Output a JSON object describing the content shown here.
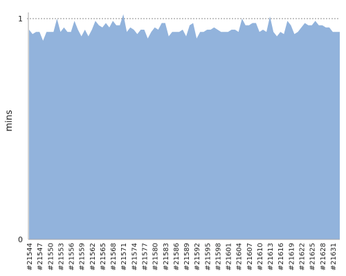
{
  "chart_data": {
    "type": "area",
    "y_label": "mins",
    "categories": [
      "#21544",
      null,
      null,
      "#21547",
      null,
      null,
      "#21550",
      null,
      null,
      "#21553",
      null,
      null,
      "#21556",
      null,
      null,
      "#21559",
      null,
      null,
      "#21562",
      null,
      null,
      "#21565",
      null,
      null,
      "#21568",
      null,
      null,
      "#21571",
      null,
      null,
      "#21574",
      null,
      null,
      "#21577",
      null,
      null,
      "#21580",
      null,
      null,
      "#21583",
      null,
      null,
      "#21586",
      null,
      null,
      "#21589",
      null,
      null,
      "#21592",
      null,
      null,
      "#21595",
      null,
      null,
      "#21598",
      null,
      null,
      "#21601",
      null,
      null,
      "#21604",
      null,
      null,
      "#21607",
      null,
      null,
      "#21610",
      null,
      null,
      "#21613",
      null,
      null,
      "#21616",
      null,
      null,
      "#21619",
      null,
      null,
      "#21622",
      null,
      null,
      "#21625",
      null,
      null,
      "#21628",
      null,
      null,
      "#21631",
      null,
      null
    ],
    "values": [
      0.95,
      0.93,
      0.94,
      0.94,
      0.9,
      0.94,
      0.94,
      0.94,
      1.0,
      0.94,
      0.96,
      0.94,
      0.94,
      0.99,
      0.95,
      0.92,
      0.95,
      0.92,
      0.95,
      0.99,
      0.97,
      0.96,
      0.98,
      0.96,
      0.99,
      0.97,
      0.97,
      1.02,
      0.94,
      0.96,
      0.95,
      0.93,
      0.95,
      0.95,
      0.91,
      0.94,
      0.96,
      0.95,
      0.98,
      0.98,
      0.92,
      0.94,
      0.94,
      0.94,
      0.95,
      0.92,
      0.97,
      0.98,
      0.91,
      0.94,
      0.94,
      0.95,
      0.95,
      0.96,
      0.95,
      0.94,
      0.94,
      0.94,
      0.95,
      0.95,
      0.94,
      1.0,
      0.97,
      0.97,
      0.98,
      0.98,
      0.94,
      0.95,
      0.94,
      1.01,
      0.94,
      0.92,
      0.94,
      0.93,
      0.99,
      0.97,
      0.93,
      0.94,
      0.96,
      0.98,
      0.97,
      0.97,
      0.99,
      0.97,
      0.97,
      0.96,
      0.96,
      0.94,
      0.94,
      0.94
    ],
    "color": "#92b3dc",
    "ylim": [
      0,
      1
    ],
    "yticks": [
      0,
      1
    ]
  }
}
